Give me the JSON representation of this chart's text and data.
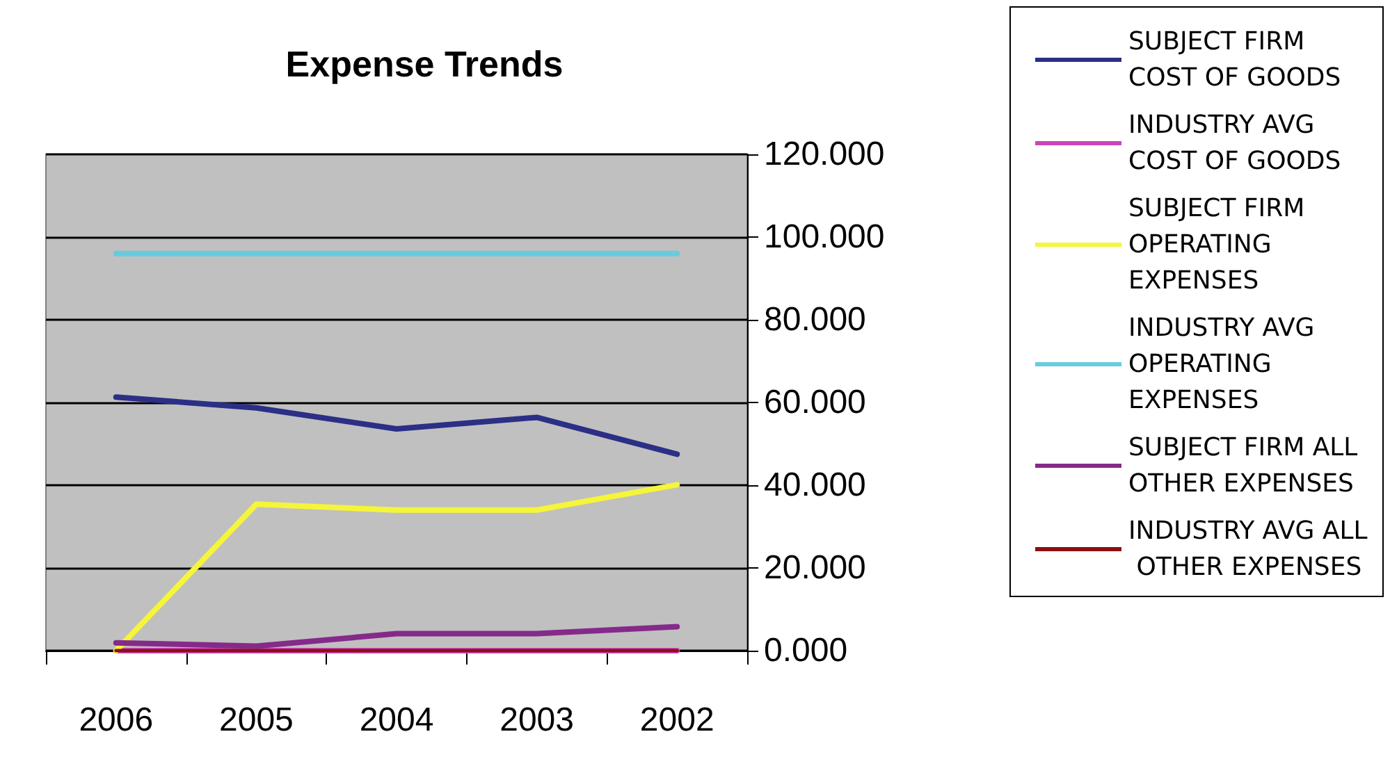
{
  "chart_data": {
    "type": "line",
    "title": "Expense Trends",
    "categories": [
      "2006",
      "2005",
      "2004",
      "2003",
      "2002"
    ],
    "series": [
      {
        "name": "SUBJECT FIRM COST OF GOODS",
        "color": "#2b2f86",
        "values": [
          61.3,
          58.7,
          53.6,
          56.4,
          47.5
        ]
      },
      {
        "name": "INDUSTRY AVG COST OF GOODS",
        "color": "#cc44bb",
        "values": [
          0,
          0,
          0,
          0,
          0
        ]
      },
      {
        "name": "SUBJECT FIRM OPERATING EXPENSES",
        "color": "#f5f53a",
        "values": [
          0,
          35.4,
          34,
          34,
          40.1
        ]
      },
      {
        "name": "INDUSTRY AVG OPERATING EXPENSES",
        "color": "#66ccdd",
        "values": [
          96,
          96,
          96,
          96,
          96
        ]
      },
      {
        "name": "SUBJECT FIRM ALL OTHER EXPENSES",
        "color": "#852a8a",
        "values": [
          1.9,
          1.1,
          4.1,
          4.1,
          5.8
        ]
      },
      {
        "name": "INDUSTRY AVG ALL OTHER EXPENSES",
        "color": "#8b1010",
        "values": [
          0,
          0,
          0,
          0,
          0
        ]
      }
    ],
    "ylim": [
      0,
      120
    ],
    "yticks": [
      {
        "value": 0,
        "label": "0.000"
      },
      {
        "value": 20,
        "label": "20.000"
      },
      {
        "value": 40,
        "label": "40.000"
      },
      {
        "value": 60,
        "label": "60.000"
      },
      {
        "value": 80,
        "label": "80.000"
      },
      {
        "value": 100,
        "label": "100.000"
      },
      {
        "value": 120,
        "label": "120.000"
      }
    ],
    "grid": "y",
    "legend": "right",
    "marker": "none",
    "line_style": "solid"
  }
}
